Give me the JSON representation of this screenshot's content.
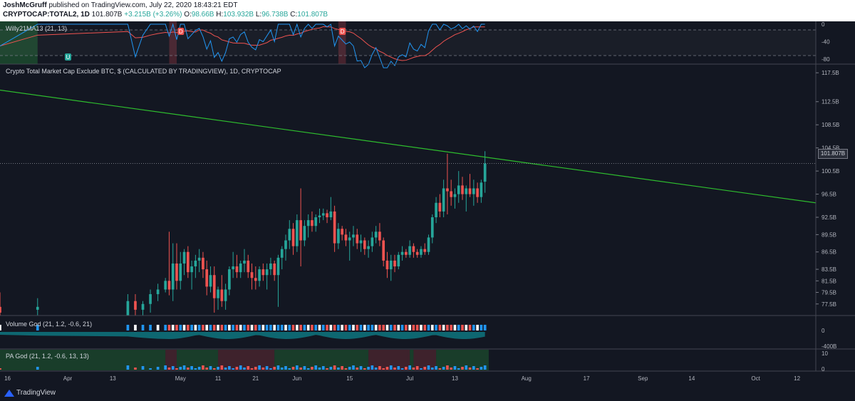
{
  "header": {
    "author": "JoshMcGruff",
    "published": "published on TradingView.com, July 22, 2020 18:43:21 EDT",
    "symbol": "CRYPTOCAP:TOTAL2, 1D",
    "last": "101.807B",
    "change": "+3.215B (+3.26%)",
    "o_label": "O:",
    "o": "98.66B",
    "h_label": "H:",
    "h": "103.932B",
    "l_label": "L:",
    "l": "96.738B",
    "c_label": "C:",
    "c": "101.807B"
  },
  "panes": {
    "willy": {
      "title": "Willy21MA13 (21, 13)",
      "ticks": [
        "0",
        "-40",
        "-80"
      ],
      "markers": [
        "U",
        "D",
        "D"
      ]
    },
    "main": {
      "title": "Crypto Total Market Cap Exclude BTC, $ (CALCULATED BY TRADINGVIEW), 1D, CRYPTOCAP",
      "last_price_tag": "101.807B"
    },
    "volume": {
      "title": "Volume God (21, 1.2, -0.6, 21)",
      "ticks": [
        "0",
        "-400B"
      ]
    },
    "pa": {
      "title": "PA God (21, 1.2, -0.6, 13, 13)",
      "ticks": [
        "10",
        "0"
      ]
    }
  },
  "x_axis": {
    "labels": [
      "16",
      "Apr",
      "13",
      "May",
      "11",
      "21",
      "Jun",
      "15",
      "Jul",
      "13",
      "Aug",
      "17",
      "Sep",
      "14",
      "Oct",
      "12"
    ]
  },
  "colors": {
    "bg": "#131722",
    "up": "#26a69a",
    "down": "#ef5350",
    "trendline": "#2ebd2e",
    "willy_line": "#2196f3",
    "willy_ma": "#ef5350"
  },
  "footer": {
    "brand": "TradingView"
  },
  "chart_data": {
    "type": "candlestick",
    "title": "Crypto Total Market Cap Exclude BTC, $ (CALCULATED BY TRADINGVIEW), 1D, CRYPTOCAP",
    "y_ticks": [
      "117.5B",
      "112.5B",
      "108.5B",
      "104.5B",
      "100.5B",
      "96.5B",
      "92.5B",
      "89.5B",
      "86.5B",
      "83.5B",
      "81.5B",
      "79.5B",
      "77.5B"
    ],
    "ylim": [
      75.5,
      119
    ],
    "x_range": [
      "Mar 14, 2020",
      "Oct 17, 2020"
    ],
    "last_close": 101.807,
    "candles": [
      {
        "date": "Mar 14, 2020",
        "o": 77,
        "h": 79.5,
        "l": 74,
        "c": 76
      },
      {
        "date": "Mar 24, 2020",
        "o": 76.5,
        "h": 78.5,
        "l": 74,
        "c": 77
      },
      {
        "date": "Apr 17, 2020",
        "o": 75.5,
        "h": 79.2,
        "l": 74,
        "c": 78
      },
      {
        "date": "Apr 19, 2020",
        "o": 78,
        "h": 79.2,
        "l": 75,
        "c": 76.5
      },
      {
        "date": "Apr 21, 2020",
        "o": 76.5,
        "h": 78,
        "l": 74.5,
        "c": 77.5
      },
      {
        "date": "Apr 23, 2020",
        "o": 77.5,
        "h": 80,
        "l": 76,
        "c": 79.2
      },
      {
        "date": "Apr 25, 2020",
        "o": 79.2,
        "h": 81,
        "l": 78,
        "c": 80
      },
      {
        "date": "Apr 27, 2020",
        "o": 80,
        "h": 82,
        "l": 79.5,
        "c": 81.5
      },
      {
        "date": "Apr 28, 2020",
        "o": 81.5,
        "h": 90,
        "l": 79,
        "c": 80
      },
      {
        "date": "Apr 29, 2020",
        "o": 80,
        "h": 88,
        "l": 78,
        "c": 84.5
      },
      {
        "date": "Apr 30, 2020",
        "o": 84.5,
        "h": 88,
        "l": 80,
        "c": 81.5
      },
      {
        "date": "May 1, 2020",
        "o": 81.5,
        "h": 86.5,
        "l": 80,
        "c": 84.5
      },
      {
        "date": "May 2, 2020",
        "o": 84.5,
        "h": 87,
        "l": 82.5,
        "c": 86.5
      },
      {
        "date": "May 3, 2020",
        "o": 86.5,
        "h": 87.5,
        "l": 82,
        "c": 83
      },
      {
        "date": "May 4, 2020",
        "o": 83,
        "h": 85,
        "l": 80,
        "c": 84
      },
      {
        "date": "May 5, 2020",
        "o": 84,
        "h": 86,
        "l": 82,
        "c": 85
      },
      {
        "date": "May 6, 2020",
        "o": 85,
        "h": 87,
        "l": 83,
        "c": 85.5
      },
      {
        "date": "May 7, 2020",
        "o": 85.5,
        "h": 86.5,
        "l": 82,
        "c": 83.5
      },
      {
        "date": "May 8, 2020",
        "o": 83.5,
        "h": 85,
        "l": 79,
        "c": 80.5
      },
      {
        "date": "May 9, 2020",
        "o": 80.5,
        "h": 84,
        "l": 79.5,
        "c": 82.5
      },
      {
        "date": "May 10, 2020",
        "o": 82.5,
        "h": 84,
        "l": 76,
        "c": 78.5
      },
      {
        "date": "May 11, 2020",
        "o": 78.5,
        "h": 80.5,
        "l": 76.5,
        "c": 80
      },
      {
        "date": "May 12, 2020",
        "o": 80,
        "h": 82.5,
        "l": 77,
        "c": 78
      },
      {
        "date": "May 13, 2020",
        "o": 78,
        "h": 81,
        "l": 76.5,
        "c": 80
      },
      {
        "date": "May 14, 2020",
        "o": 80,
        "h": 84,
        "l": 79,
        "c": 83.5
      },
      {
        "date": "May 15, 2020",
        "o": 83.5,
        "h": 86.5,
        "l": 82,
        "c": 84
      },
      {
        "date": "May 16, 2020",
        "o": 84,
        "h": 86,
        "l": 82,
        "c": 83
      },
      {
        "date": "May 17, 2020",
        "o": 83,
        "h": 85,
        "l": 82,
        "c": 84.5
      },
      {
        "date": "May 18, 2020",
        "o": 84.5,
        "h": 87,
        "l": 83,
        "c": 85
      },
      {
        "date": "May 19, 2020",
        "o": 85,
        "h": 86,
        "l": 82,
        "c": 83
      },
      {
        "date": "May 20, 2020",
        "o": 83,
        "h": 84.5,
        "l": 80,
        "c": 82
      },
      {
        "date": "May 21, 2020",
        "o": 82,
        "h": 84,
        "l": 80,
        "c": 81.5
      },
      {
        "date": "May 22, 2020",
        "o": 81.5,
        "h": 84,
        "l": 80.5,
        "c": 83.5
      },
      {
        "date": "May 23, 2020",
        "o": 83.5,
        "h": 84.5,
        "l": 81.5,
        "c": 82.5
      },
      {
        "date": "May 24, 2020",
        "o": 82.5,
        "h": 84.5,
        "l": 80,
        "c": 83.5
      },
      {
        "date": "May 25, 2020",
        "o": 83.5,
        "h": 85.5,
        "l": 82.5,
        "c": 84.5
      },
      {
        "date": "May 26, 2020",
        "o": 84.5,
        "h": 85,
        "l": 81.5,
        "c": 82.5
      },
      {
        "date": "May 27, 2020",
        "o": 82.5,
        "h": 86,
        "l": 77,
        "c": 85.5
      },
      {
        "date": "May 28, 2020",
        "o": 85.5,
        "h": 87.5,
        "l": 83.5,
        "c": 87
      },
      {
        "date": "May 29, 2020",
        "o": 87,
        "h": 89.5,
        "l": 85,
        "c": 88.5
      },
      {
        "date": "May 30, 2020",
        "o": 88.5,
        "h": 92,
        "l": 87,
        "c": 90.5
      },
      {
        "date": "May 31, 2020",
        "o": 90.5,
        "h": 91.5,
        "l": 86,
        "c": 87.5
      },
      {
        "date": "Jun 1, 2020",
        "o": 87.5,
        "h": 93,
        "l": 86.5,
        "c": 92
      },
      {
        "date": "Jun 2, 2020",
        "o": 92,
        "h": 97.5,
        "l": 84,
        "c": 88.5
      },
      {
        "date": "Jun 3, 2020",
        "o": 88.5,
        "h": 92,
        "l": 87.5,
        "c": 91
      },
      {
        "date": "Jun 4, 2020",
        "o": 91,
        "h": 93,
        "l": 89,
        "c": 92
      },
      {
        "date": "Jun 5, 2020",
        "o": 92,
        "h": 93.5,
        "l": 90,
        "c": 91
      },
      {
        "date": "Jun 6, 2020",
        "o": 91,
        "h": 93,
        "l": 90,
        "c": 92.5
      },
      {
        "date": "Jun 7, 2020",
        "o": 92.5,
        "h": 94,
        "l": 91.5,
        "c": 92.8
      },
      {
        "date": "Jun 8, 2020",
        "o": 92.8,
        "h": 94,
        "l": 92,
        "c": 93.2
      },
      {
        "date": "Jun 9, 2020",
        "o": 93.2,
        "h": 93.8,
        "l": 91.5,
        "c": 92.5
      },
      {
        "date": "Jun 10, 2020",
        "o": 92.5,
        "h": 96,
        "l": 92,
        "c": 93.5
      },
      {
        "date": "Jun 11, 2020",
        "o": 93.5,
        "h": 94.5,
        "l": 86.5,
        "c": 88
      },
      {
        "date": "Jun 12, 2020",
        "o": 88,
        "h": 91.5,
        "l": 87,
        "c": 90.5
      },
      {
        "date": "Jun 13, 2020",
        "o": 90.5,
        "h": 91,
        "l": 88.5,
        "c": 89.5
      },
      {
        "date": "Jun 14, 2020",
        "o": 89.5,
        "h": 90.5,
        "l": 87.5,
        "c": 88.5
      },
      {
        "date": "Jun 15, 2020",
        "o": 88.5,
        "h": 90,
        "l": 85,
        "c": 89
      },
      {
        "date": "Jun 16, 2020",
        "o": 89,
        "h": 91,
        "l": 87.5,
        "c": 89.5
      },
      {
        "date": "Jun 17, 2020",
        "o": 89.5,
        "h": 90.5,
        "l": 87,
        "c": 88
      },
      {
        "date": "Jun 18, 2020",
        "o": 88,
        "h": 89.5,
        "l": 86.5,
        "c": 88.5
      },
      {
        "date": "Jun 19, 2020",
        "o": 88.5,
        "h": 89,
        "l": 86,
        "c": 87
      },
      {
        "date": "Jun 20, 2020",
        "o": 87,
        "h": 88.5,
        "l": 85.5,
        "c": 87.5
      },
      {
        "date": "Jun 21, 2020",
        "o": 87.5,
        "h": 90,
        "l": 86.5,
        "c": 89
      },
      {
        "date": "Jun 22, 2020",
        "o": 89,
        "h": 91,
        "l": 88,
        "c": 90
      },
      {
        "date": "Jun 23, 2020",
        "o": 90,
        "h": 91.5,
        "l": 87.5,
        "c": 88.5
      },
      {
        "date": "Jun 24, 2020",
        "o": 88.5,
        "h": 89,
        "l": 84,
        "c": 85
      },
      {
        "date": "Jun 25, 2020",
        "o": 85,
        "h": 86.5,
        "l": 82,
        "c": 83.5
      },
      {
        "date": "Jun 26, 2020",
        "o": 83.5,
        "h": 86,
        "l": 81.5,
        "c": 85
      },
      {
        "date": "Jun 27, 2020",
        "o": 85,
        "h": 86,
        "l": 83,
        "c": 84
      },
      {
        "date": "Jun 28, 2020",
        "o": 84,
        "h": 86.5,
        "l": 83.5,
        "c": 86
      },
      {
        "date": "Jun 29, 2020",
        "o": 86,
        "h": 87.5,
        "l": 85,
        "c": 86.5
      },
      {
        "date": "Jun 30, 2020",
        "o": 86.5,
        "h": 87,
        "l": 85.5,
        "c": 86
      },
      {
        "date": "Jul 1, 2020",
        "o": 86,
        "h": 88.5,
        "l": 85.5,
        "c": 87.5
      },
      {
        "date": "Jul 2, 2020",
        "o": 87.5,
        "h": 88,
        "l": 85.5,
        "c": 86.5
      },
      {
        "date": "Jul 3, 2020",
        "o": 86.5,
        "h": 87,
        "l": 85.5,
        "c": 86
      },
      {
        "date": "Jul 4, 2020",
        "o": 86,
        "h": 87.5,
        "l": 85.5,
        "c": 87
      },
      {
        "date": "Jul 5, 2020",
        "o": 87,
        "h": 88,
        "l": 86,
        "c": 86.5
      },
      {
        "date": "Jul 6, 2020",
        "o": 86.5,
        "h": 89.5,
        "l": 86,
        "c": 89
      },
      {
        "date": "Jul 7, 2020",
        "o": 89,
        "h": 93,
        "l": 88,
        "c": 92.5
      },
      {
        "date": "Jul 8, 2020",
        "o": 92.5,
        "h": 96,
        "l": 91.5,
        "c": 95
      },
      {
        "date": "Jul 9, 2020",
        "o": 95,
        "h": 96.5,
        "l": 92.5,
        "c": 93.5
      },
      {
        "date": "Jul 10, 2020",
        "o": 93.5,
        "h": 99,
        "l": 92.5,
        "c": 97.5
      },
      {
        "date": "Jul 11, 2020",
        "o": 97.5,
        "h": 103.5,
        "l": 93,
        "c": 97
      },
      {
        "date": "Jul 12, 2020",
        "o": 97,
        "h": 99,
        "l": 94.5,
        "c": 96
      },
      {
        "date": "Jul 13, 2020",
        "o": 96,
        "h": 97.5,
        "l": 94,
        "c": 96.5
      },
      {
        "date": "Jul 14, 2020",
        "o": 96.5,
        "h": 100.5,
        "l": 95,
        "c": 98
      },
      {
        "date": "Jul 15, 2020",
        "o": 98,
        "h": 99.5,
        "l": 95.5,
        "c": 96.5
      },
      {
        "date": "Jul 16, 2020",
        "o": 96.5,
        "h": 98,
        "l": 93.5,
        "c": 97.5
      },
      {
        "date": "Jul 17, 2020",
        "o": 97.5,
        "h": 100,
        "l": 96,
        "c": 96.5
      },
      {
        "date": "Jul 18, 2020",
        "o": 96.5,
        "h": 99,
        "l": 94.5,
        "c": 97.5
      },
      {
        "date": "Jul 19, 2020",
        "o": 97.5,
        "h": 98.5,
        "l": 95,
        "c": 96
      },
      {
        "date": "Jul 20, 2020",
        "o": 96,
        "h": 99,
        "l": 95,
        "c": 98.5
      },
      {
        "date": "Jul 21, 2020",
        "o": 98.66,
        "h": 103.932,
        "l": 96.738,
        "c": 101.807
      }
    ],
    "trendline": {
      "color": "green",
      "from": {
        "date": "Mar 14, 2020",
        "y": 114.5
      },
      "to": {
        "date": "Oct 17, 2020",
        "y": 95
      }
    },
    "willy_indicator": {
      "range": [
        -90,
        5
      ],
      "dashed_levels": [
        -20,
        -80
      ]
    }
  }
}
